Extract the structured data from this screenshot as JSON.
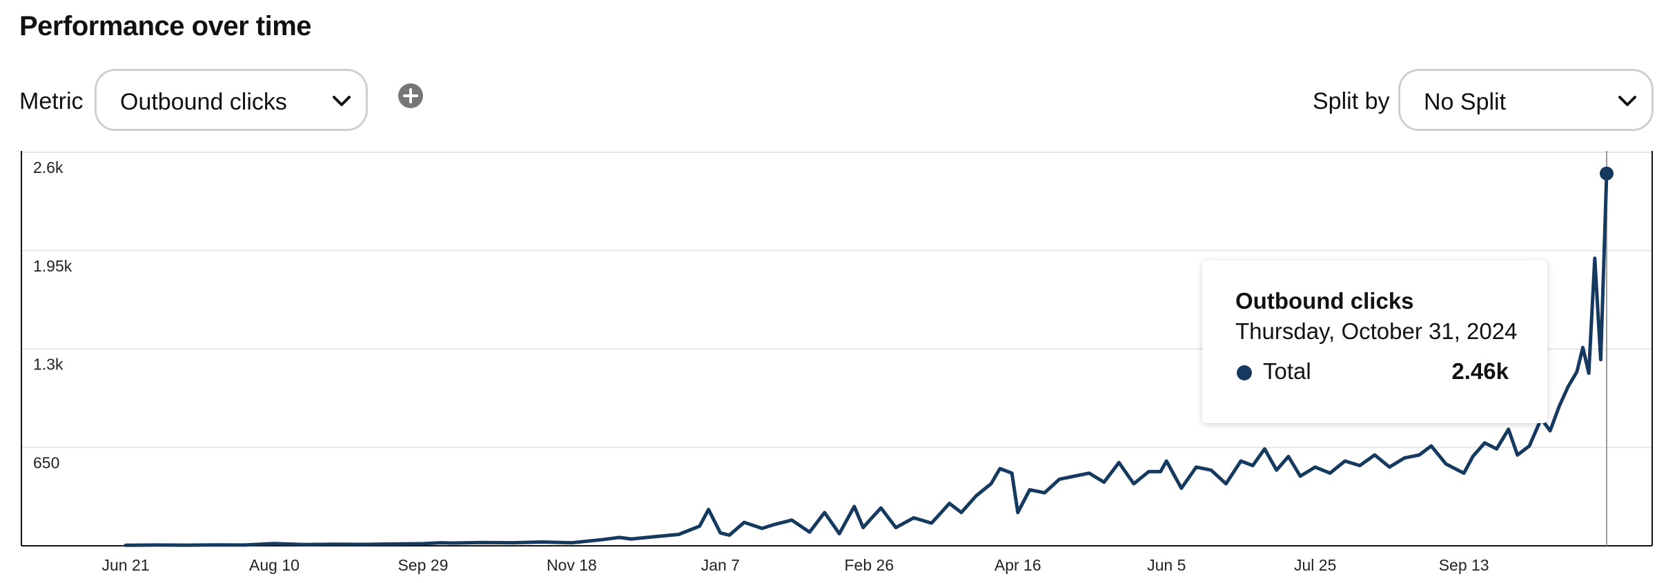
{
  "header": {
    "title": "Performance over time"
  },
  "controls": {
    "metric_label": "Metric",
    "metric_value": "Outbound clicks",
    "split_label": "Split by",
    "split_value": "No Split"
  },
  "colors": {
    "series": "#163a5f",
    "grid": "#e6e6e6",
    "axis": "#111111",
    "cursor": "#9a9a9a"
  },
  "tooltip": {
    "title": "Outbound clicks",
    "date": "Thursday, October 31, 2024",
    "series_name": "Total",
    "value": "2.46k"
  },
  "chart_data": {
    "type": "line",
    "title": "",
    "xlabel": "",
    "ylabel": "",
    "ylim": [
      0,
      2600
    ],
    "yticks": [
      650,
      1300,
      1950,
      2600
    ],
    "ytick_labels": [
      "650",
      "1.3k",
      "1.95k",
      "2.6k"
    ],
    "xlim": [
      "2023-06-21",
      "2024-10-31"
    ],
    "xticks": [
      "2023-06-21",
      "2023-08-10",
      "2023-09-29",
      "2023-11-18",
      "2024-01-07",
      "2024-02-26",
      "2024-04-16",
      "2024-06-05",
      "2024-07-25",
      "2024-09-13"
    ],
    "xtick_labels": [
      "Jun 21",
      "Aug 10",
      "Sep 29",
      "Nov 18",
      "Jan 7",
      "Feb 26",
      "Apr 16",
      "Jun 5",
      "Jul 25",
      "Sep 13"
    ],
    "grid": true,
    "highlight": {
      "date": "2024-10-31",
      "value": 2460
    },
    "series": [
      {
        "name": "Total",
        "points": [
          [
            "2023-06-21",
            3
          ],
          [
            "2023-07-01",
            5
          ],
          [
            "2023-07-11",
            4
          ],
          [
            "2023-07-21",
            6
          ],
          [
            "2023-07-31",
            5
          ],
          [
            "2023-08-10",
            15
          ],
          [
            "2023-08-20",
            8
          ],
          [
            "2023-08-30",
            10
          ],
          [
            "2023-09-09",
            9
          ],
          [
            "2023-09-19",
            12
          ],
          [
            "2023-09-29",
            14
          ],
          [
            "2023-10-05",
            20
          ],
          [
            "2023-10-09",
            18
          ],
          [
            "2023-10-19",
            22
          ],
          [
            "2023-10-29",
            20
          ],
          [
            "2023-11-08",
            25
          ],
          [
            "2023-11-18",
            20
          ],
          [
            "2023-11-28",
            40
          ],
          [
            "2023-12-04",
            55
          ],
          [
            "2023-12-08",
            45
          ],
          [
            "2023-12-16",
            60
          ],
          [
            "2023-12-24",
            75
          ],
          [
            "2023-12-31",
            130
          ],
          [
            "2024-01-03",
            240
          ],
          [
            "2024-01-07",
            85
          ],
          [
            "2024-01-10",
            70
          ],
          [
            "2024-01-15",
            155
          ],
          [
            "2024-01-21",
            115
          ],
          [
            "2024-01-25",
            140
          ],
          [
            "2024-01-31",
            170
          ],
          [
            "2024-02-06",
            90
          ],
          [
            "2024-02-11",
            220
          ],
          [
            "2024-02-16",
            80
          ],
          [
            "2024-02-21",
            260
          ],
          [
            "2024-02-24",
            120
          ],
          [
            "2024-02-26",
            165
          ],
          [
            "2024-03-01",
            250
          ],
          [
            "2024-03-06",
            120
          ],
          [
            "2024-03-12",
            185
          ],
          [
            "2024-03-18",
            150
          ],
          [
            "2024-03-24",
            280
          ],
          [
            "2024-03-28",
            220
          ],
          [
            "2024-04-02",
            330
          ],
          [
            "2024-04-07",
            410
          ],
          [
            "2024-04-10",
            510
          ],
          [
            "2024-04-14",
            480
          ],
          [
            "2024-04-16",
            220
          ],
          [
            "2024-04-20",
            370
          ],
          [
            "2024-04-25",
            350
          ],
          [
            "2024-04-30",
            440
          ],
          [
            "2024-05-05",
            460
          ],
          [
            "2024-05-10",
            480
          ],
          [
            "2024-05-15",
            420
          ],
          [
            "2024-05-20",
            550
          ],
          [
            "2024-05-25",
            410
          ],
          [
            "2024-05-30",
            490
          ],
          [
            "2024-06-03",
            490
          ],
          [
            "2024-06-05",
            560
          ],
          [
            "2024-06-10",
            380
          ],
          [
            "2024-06-15",
            520
          ],
          [
            "2024-06-20",
            500
          ],
          [
            "2024-06-25",
            410
          ],
          [
            "2024-06-30",
            560
          ],
          [
            "2024-07-04",
            530
          ],
          [
            "2024-07-08",
            640
          ],
          [
            "2024-07-12",
            500
          ],
          [
            "2024-07-16",
            590
          ],
          [
            "2024-07-20",
            460
          ],
          [
            "2024-07-25",
            520
          ],
          [
            "2024-07-30",
            480
          ],
          [
            "2024-08-04",
            560
          ],
          [
            "2024-08-09",
            530
          ],
          [
            "2024-08-14",
            600
          ],
          [
            "2024-08-19",
            520
          ],
          [
            "2024-08-24",
            580
          ],
          [
            "2024-08-29",
            600
          ],
          [
            "2024-09-02",
            660
          ],
          [
            "2024-09-07",
            540
          ],
          [
            "2024-09-13",
            480
          ],
          [
            "2024-09-16",
            590
          ],
          [
            "2024-09-20",
            680
          ],
          [
            "2024-09-24",
            640
          ],
          [
            "2024-09-28",
            770
          ],
          [
            "2024-10-01",
            600
          ],
          [
            "2024-10-05",
            660
          ],
          [
            "2024-10-09",
            840
          ],
          [
            "2024-10-12",
            760
          ],
          [
            "2024-10-15",
            920
          ],
          [
            "2024-10-18",
            1050
          ],
          [
            "2024-10-21",
            1150
          ],
          [
            "2024-10-23",
            1310
          ],
          [
            "2024-10-25",
            1140
          ],
          [
            "2024-10-27",
            1900
          ],
          [
            "2024-10-29",
            1230
          ],
          [
            "2024-10-31",
            2460
          ]
        ]
      }
    ]
  }
}
